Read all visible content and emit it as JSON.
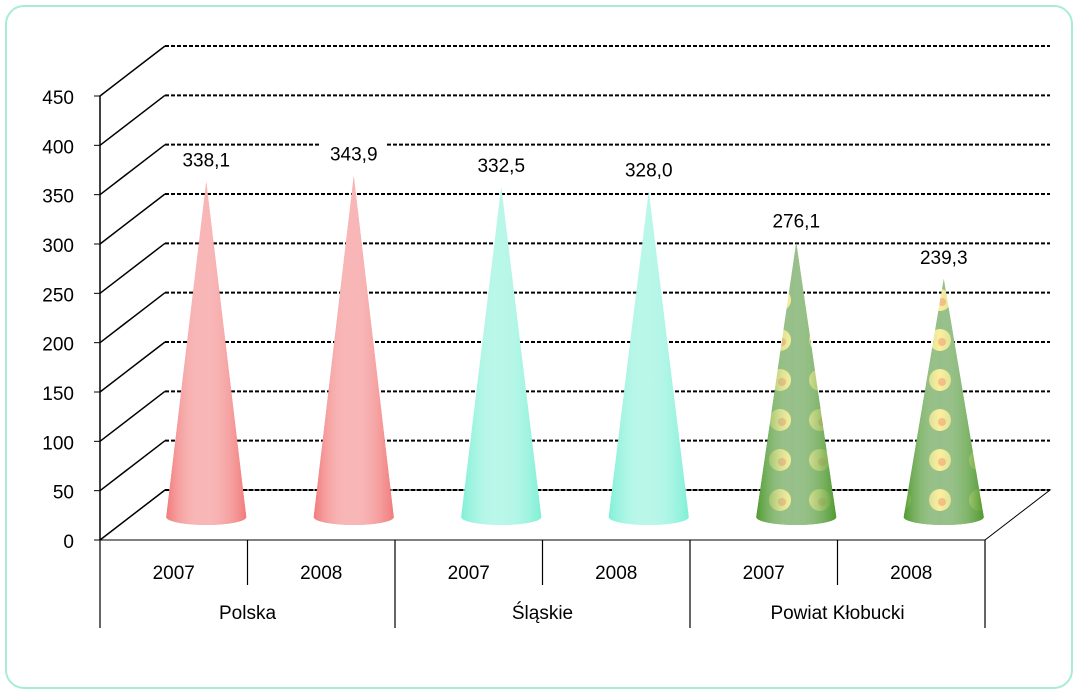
{
  "chart_data": {
    "type": "cone",
    "categories": [
      "2007",
      "2008",
      "2007",
      "2008",
      "2007",
      "2008"
    ],
    "groups": [
      "Polska",
      "Śląskie",
      "Powiat Kłobucki"
    ],
    "values": [
      338.1,
      343.9,
      332.5,
      328.0,
      276.1,
      239.3
    ],
    "value_labels": [
      "338,1",
      "343,9",
      "332,5",
      "328,0",
      "276,1",
      "239,3"
    ],
    "colors": [
      "#f27a7a",
      "#f27a7a",
      "#7ff0d6",
      "#7ff0d6",
      "#4f9a2e",
      "#4f9a2e"
    ],
    "ylim": [
      0,
      450
    ],
    "yticks": [
      0,
      50,
      100,
      150,
      200,
      250,
      300,
      350,
      400,
      450
    ],
    "grid": true
  }
}
